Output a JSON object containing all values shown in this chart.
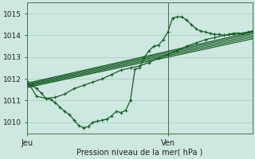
{
  "background_color": "#cce8e0",
  "grid_color": "#aaccbb",
  "line_color": "#1a5c28",
  "marker_color": "#1a5c28",
  "xlabel": "Pression niveau de la mer( hPa )",
  "ylim": [
    1009.5,
    1015.5
  ],
  "yticks": [
    1010,
    1011,
    1012,
    1013,
    1014,
    1015
  ],
  "xlim": [
    0,
    48
  ],
  "x_jeu": 0,
  "x_ven": 30,
  "x_end": 48,
  "series1_x": [
    0,
    1,
    2,
    3,
    4,
    5,
    6,
    7,
    8,
    9,
    10,
    11,
    12,
    13,
    14,
    15,
    16,
    17,
    18,
    19,
    20,
    21,
    22,
    23,
    24,
    25,
    26,
    27,
    28,
    29,
    30,
    31,
    32,
    33,
    34,
    35,
    36,
    37,
    38,
    39,
    40,
    41,
    42,
    43,
    44,
    45,
    46,
    47,
    48
  ],
  "series1_y": [
    1011.75,
    1011.7,
    1011.55,
    1011.35,
    1011.1,
    1011.05,
    1010.9,
    1010.7,
    1010.5,
    1010.35,
    1010.1,
    1009.85,
    1009.75,
    1009.8,
    1010.0,
    1010.05,
    1010.1,
    1010.15,
    1010.3,
    1010.5,
    1010.45,
    1010.55,
    1011.0,
    1012.45,
    1012.5,
    1013.0,
    1013.3,
    1013.5,
    1013.55,
    1013.8,
    1014.15,
    1014.8,
    1014.85,
    1014.85,
    1014.7,
    1014.5,
    1014.3,
    1014.2,
    1014.15,
    1014.1,
    1014.05,
    1014.05,
    1014.0,
    1014.05,
    1014.1,
    1014.1,
    1014.1,
    1014.15,
    1014.2
  ],
  "series2_x": [
    0,
    2,
    4,
    6,
    8,
    10,
    12,
    14,
    16,
    18,
    20,
    22,
    24,
    26,
    28,
    30,
    32,
    34,
    36,
    38,
    40,
    42,
    44,
    46,
    48
  ],
  "series2_y": [
    1011.9,
    1011.2,
    1011.1,
    1011.15,
    1011.3,
    1011.55,
    1011.7,
    1011.85,
    1012.0,
    1012.2,
    1012.4,
    1012.5,
    1012.6,
    1012.75,
    1012.95,
    1013.1,
    1013.3,
    1013.5,
    1013.65,
    1013.8,
    1013.9,
    1014.0,
    1014.05,
    1014.1,
    1014.15
  ],
  "fan_lines": [
    {
      "x": [
        0,
        48
      ],
      "y": [
        1011.8,
        1014.15
      ]
    },
    {
      "x": [
        0,
        48
      ],
      "y": [
        1011.75,
        1014.08
      ]
    },
    {
      "x": [
        0,
        48
      ],
      "y": [
        1011.7,
        1014.0
      ]
    },
    {
      "x": [
        0,
        48
      ],
      "y": [
        1011.65,
        1013.92
      ]
    },
    {
      "x": [
        0,
        48
      ],
      "y": [
        1011.6,
        1013.84
      ]
    }
  ],
  "ven_x": 30
}
